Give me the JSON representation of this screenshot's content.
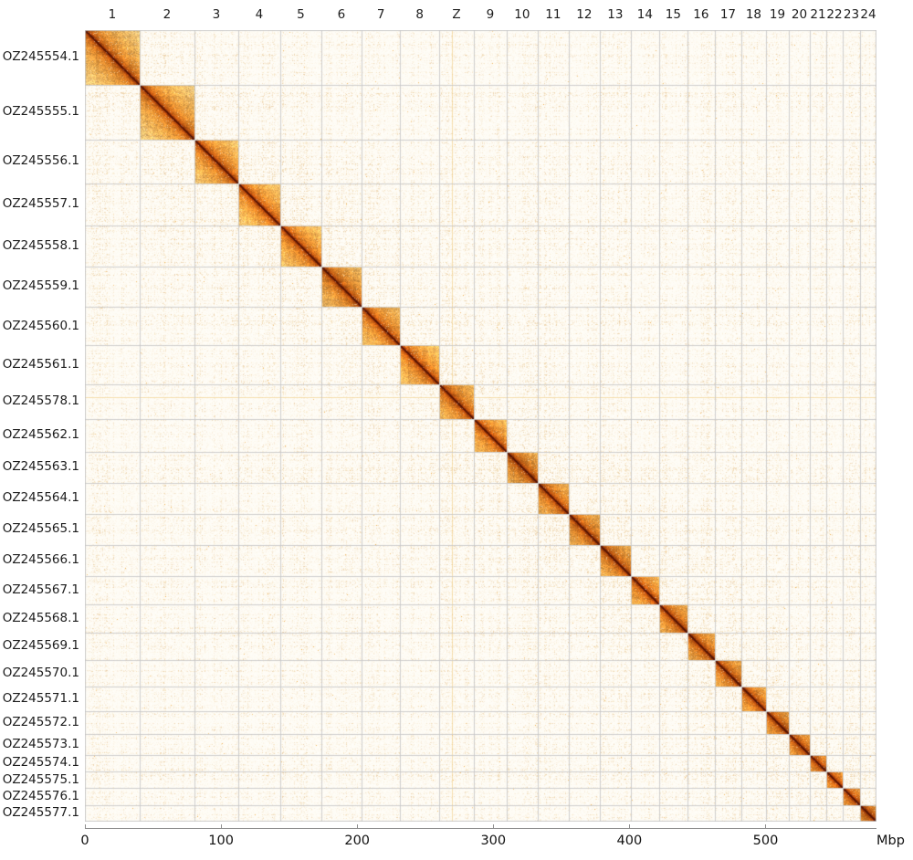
{
  "chart_data": {
    "type": "heatmap",
    "subtype": "hic-genome-contact-map",
    "title": "",
    "total_size_mbp": 581.5,
    "chromosomes": [
      {
        "name": "1",
        "accession": "OZ245554.1",
        "size_mbp": 40.2
      },
      {
        "name": "2",
        "accession": "OZ245555.1",
        "size_mbp": 40.2
      },
      {
        "name": "3",
        "accession": "OZ245556.1",
        "size_mbp": 32.2
      },
      {
        "name": "4",
        "accession": "OZ245557.1",
        "size_mbp": 30.9
      },
      {
        "name": "5",
        "accession": "OZ245558.1",
        "size_mbp": 30.2
      },
      {
        "name": "6",
        "accession": "OZ245559.1",
        "size_mbp": 29.5
      },
      {
        "name": "7",
        "accession": "OZ245560.1",
        "size_mbp": 28.5
      },
      {
        "name": "8",
        "accession": "OZ245561.1",
        "size_mbp": 28.5
      },
      {
        "name": "Z",
        "accession": "OZ245578.1",
        "size_mbp": 25.5
      },
      {
        "name": "9",
        "accession": "OZ245562.1",
        "size_mbp": 24.1
      },
      {
        "name": "10",
        "accession": "OZ245563.1",
        "size_mbp": 22.8
      },
      {
        "name": "11",
        "accession": "OZ245564.1",
        "size_mbp": 22.8
      },
      {
        "name": "12",
        "accession": "OZ245565.1",
        "size_mbp": 22.8
      },
      {
        "name": "13",
        "accession": "OZ245566.1",
        "size_mbp": 22.8
      },
      {
        "name": "14",
        "accession": "OZ245567.1",
        "size_mbp": 20.8
      },
      {
        "name": "15",
        "accession": "OZ245568.1",
        "size_mbp": 20.8
      },
      {
        "name": "16",
        "accession": "OZ245569.1",
        "size_mbp": 20.1
      },
      {
        "name": "17",
        "accession": "OZ245570.1",
        "size_mbp": 19.5
      },
      {
        "name": "18",
        "accession": "OZ245571.1",
        "size_mbp": 18.1
      },
      {
        "name": "19",
        "accession": "OZ245572.1",
        "size_mbp": 16.8
      },
      {
        "name": "20",
        "accession": "OZ245573.1",
        "size_mbp": 15.4
      },
      {
        "name": "21",
        "accession": "OZ245574.1",
        "size_mbp": 12.1
      },
      {
        "name": "22",
        "accession": "OZ245575.1",
        "size_mbp": 12.1
      },
      {
        "name": "23",
        "accession": "OZ245576.1",
        "size_mbp": 12.7
      },
      {
        "name": "24",
        "accession": "OZ245577.1",
        "size_mbp": 12.1
      }
    ],
    "x_axis": {
      "tick_values": [
        0,
        100,
        200,
        300,
        400,
        500
      ],
      "tick_labels": [
        "0",
        "100",
        "200",
        "300",
        "400",
        "500"
      ],
      "unit_label": "Mbp"
    },
    "artifact_line_position_mbp": 269.5,
    "legend": "none",
    "grid": "chromosome-boundaries",
    "colors": {
      "page_background": "#ffffff",
      "matrix_background": "#fffdf7",
      "speckle": "#f2d494",
      "block_far": "#f9d082",
      "block_mid": "#e68e30",
      "block_near_diagonal": "#cb6214",
      "diagonal_core": "#541000",
      "grid_line": "#c8c8c8",
      "axis_line": "#8f8f8f",
      "label_text": "#1c1c1c",
      "artifact_line": "#ecc36a"
    }
  }
}
